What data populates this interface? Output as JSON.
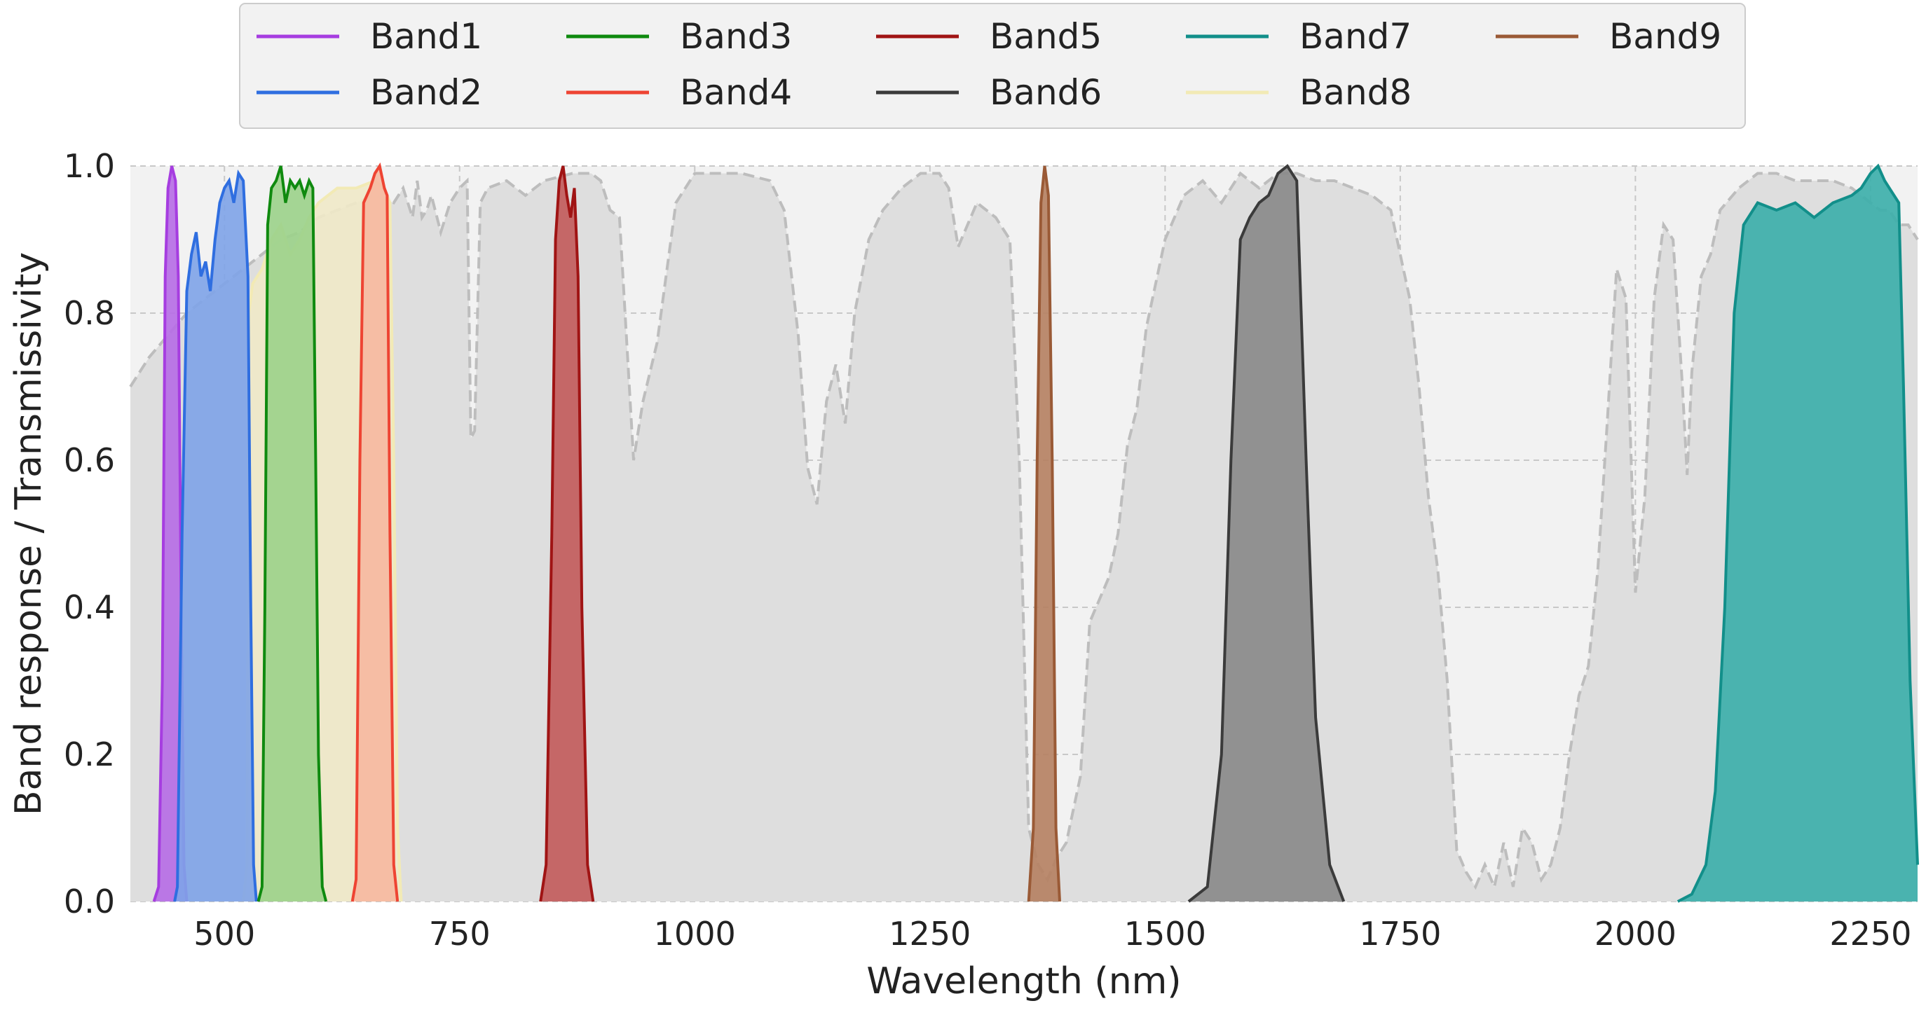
{
  "chart_data": {
    "type": "area",
    "xlabel": "Wavelength (nm)",
    "ylabel": "Band response / Transmissivity",
    "xlim": [
      400,
      2300
    ],
    "ylim": [
      0,
      1.0
    ],
    "xticks": [
      500,
      750,
      1000,
      1250,
      1500,
      1750,
      2000,
      2250
    ],
    "yticks": [
      0.0,
      0.2,
      0.4,
      0.6,
      0.8,
      1.0
    ],
    "grid": true,
    "legend_position": "top-center",
    "transmissivity": {
      "color": "#bdbdbd",
      "points": [
        [
          400,
          0.7
        ],
        [
          420,
          0.74
        ],
        [
          440,
          0.77
        ],
        [
          460,
          0.8
        ],
        [
          480,
          0.82
        ],
        [
          500,
          0.84
        ],
        [
          520,
          0.86
        ],
        [
          540,
          0.88
        ],
        [
          560,
          0.9
        ],
        [
          580,
          0.91
        ],
        [
          600,
          0.93
        ],
        [
          620,
          0.94
        ],
        [
          640,
          0.95
        ],
        [
          660,
          0.96
        ],
        [
          680,
          0.95
        ],
        [
          690,
          0.97
        ],
        [
          700,
          0.93
        ],
        [
          705,
          0.98
        ],
        [
          710,
          0.93
        ],
        [
          715,
          0.94
        ],
        [
          720,
          0.96
        ],
        [
          730,
          0.91
        ],
        [
          740,
          0.95
        ],
        [
          750,
          0.97
        ],
        [
          758,
          0.98
        ],
        [
          762,
          0.63
        ],
        [
          766,
          0.64
        ],
        [
          772,
          0.95
        ],
        [
          780,
          0.97
        ],
        [
          800,
          0.98
        ],
        [
          820,
          0.96
        ],
        [
          840,
          0.98
        ],
        [
          870,
          0.99
        ],
        [
          890,
          0.99
        ],
        [
          900,
          0.98
        ],
        [
          910,
          0.94
        ],
        [
          920,
          0.93
        ],
        [
          935,
          0.6
        ],
        [
          945,
          0.68
        ],
        [
          960,
          0.76
        ],
        [
          980,
          0.95
        ],
        [
          1000,
          0.99
        ],
        [
          1050,
          0.99
        ],
        [
          1080,
          0.98
        ],
        [
          1095,
          0.94
        ],
        [
          1110,
          0.77
        ],
        [
          1120,
          0.59
        ],
        [
          1130,
          0.54
        ],
        [
          1140,
          0.68
        ],
        [
          1150,
          0.73
        ],
        [
          1160,
          0.65
        ],
        [
          1170,
          0.8
        ],
        [
          1185,
          0.9
        ],
        [
          1200,
          0.94
        ],
        [
          1220,
          0.97
        ],
        [
          1240,
          0.99
        ],
        [
          1260,
          0.99
        ],
        [
          1270,
          0.97
        ],
        [
          1280,
          0.89
        ],
        [
          1300,
          0.95
        ],
        [
          1320,
          0.93
        ],
        [
          1335,
          0.9
        ],
        [
          1345,
          0.6
        ],
        [
          1355,
          0.1
        ],
        [
          1365,
          0.05
        ],
        [
          1375,
          0.03
        ],
        [
          1385,
          0.06
        ],
        [
          1395,
          0.08
        ],
        [
          1410,
          0.17
        ],
        [
          1420,
          0.38
        ],
        [
          1440,
          0.44
        ],
        [
          1450,
          0.5
        ],
        [
          1460,
          0.62
        ],
        [
          1470,
          0.67
        ],
        [
          1480,
          0.78
        ],
        [
          1500,
          0.9
        ],
        [
          1520,
          0.96
        ],
        [
          1540,
          0.98
        ],
        [
          1560,
          0.95
        ],
        [
          1580,
          0.99
        ],
        [
          1600,
          0.97
        ],
        [
          1620,
          0.99
        ],
        [
          1640,
          0.99
        ],
        [
          1660,
          0.98
        ],
        [
          1680,
          0.98
        ],
        [
          1700,
          0.97
        ],
        [
          1720,
          0.96
        ],
        [
          1740,
          0.94
        ],
        [
          1750,
          0.88
        ],
        [
          1760,
          0.82
        ],
        [
          1770,
          0.7
        ],
        [
          1780,
          0.55
        ],
        [
          1790,
          0.45
        ],
        [
          1800,
          0.3
        ],
        [
          1810,
          0.07
        ],
        [
          1820,
          0.04
        ],
        [
          1830,
          0.02
        ],
        [
          1840,
          0.05
        ],
        [
          1850,
          0.02
        ],
        [
          1860,
          0.08
        ],
        [
          1870,
          0.02
        ],
        [
          1880,
          0.1
        ],
        [
          1890,
          0.08
        ],
        [
          1900,
          0.03
        ],
        [
          1910,
          0.05
        ],
        [
          1920,
          0.1
        ],
        [
          1930,
          0.2
        ],
        [
          1940,
          0.28
        ],
        [
          1950,
          0.32
        ],
        [
          1960,
          0.45
        ],
        [
          1970,
          0.65
        ],
        [
          1980,
          0.86
        ],
        [
          1990,
          0.82
        ],
        [
          2000,
          0.42
        ],
        [
          2010,
          0.55
        ],
        [
          2020,
          0.82
        ],
        [
          2030,
          0.92
        ],
        [
          2040,
          0.9
        ],
        [
          2050,
          0.7
        ],
        [
          2055,
          0.58
        ],
        [
          2060,
          0.72
        ],
        [
          2070,
          0.85
        ],
        [
          2080,
          0.88
        ],
        [
          2090,
          0.94
        ],
        [
          2110,
          0.97
        ],
        [
          2130,
          0.99
        ],
        [
          2150,
          0.99
        ],
        [
          2170,
          0.98
        ],
        [
          2190,
          0.98
        ],
        [
          2210,
          0.98
        ],
        [
          2230,
          0.97
        ],
        [
          2240,
          0.96
        ],
        [
          2250,
          0.95
        ],
        [
          2260,
          0.94
        ],
        [
          2270,
          0.94
        ],
        [
          2280,
          0.92
        ],
        [
          2290,
          0.92
        ],
        [
          2300,
          0.9
        ]
      ]
    },
    "series": [
      {
        "name": "Band1",
        "color": "#a63de0",
        "fill": "#b66be6",
        "points": [
          [
            425,
            0.0
          ],
          [
            430,
            0.02
          ],
          [
            434,
            0.3
          ],
          [
            437,
            0.85
          ],
          [
            440,
            0.97
          ],
          [
            444,
            1.0
          ],
          [
            448,
            0.98
          ],
          [
            451,
            0.85
          ],
          [
            454,
            0.4
          ],
          [
            457,
            0.05
          ],
          [
            460,
            0.0
          ]
        ]
      },
      {
        "name": "Band2",
        "color": "#2f6ee0",
        "fill": "#7ea3e8",
        "points": [
          [
            447,
            0.0
          ],
          [
            450,
            0.02
          ],
          [
            455,
            0.5
          ],
          [
            460,
            0.83
          ],
          [
            465,
            0.88
          ],
          [
            470,
            0.91
          ],
          [
            475,
            0.85
          ],
          [
            480,
            0.87
          ],
          [
            485,
            0.83
          ],
          [
            490,
            0.9
          ],
          [
            495,
            0.95
          ],
          [
            500,
            0.97
          ],
          [
            505,
            0.98
          ],
          [
            510,
            0.95
          ],
          [
            515,
            0.99
          ],
          [
            520,
            0.98
          ],
          [
            525,
            0.85
          ],
          [
            528,
            0.4
          ],
          [
            531,
            0.05
          ],
          [
            534,
            0.0
          ]
        ]
      },
      {
        "name": "Band3",
        "color": "#0f8a0f",
        "fill": "#9bd28a",
        "points": [
          [
            536,
            0.0
          ],
          [
            540,
            0.02
          ],
          [
            543,
            0.4
          ],
          [
            546,
            0.92
          ],
          [
            550,
            0.97
          ],
          [
            555,
            0.98
          ],
          [
            560,
            1.0
          ],
          [
            565,
            0.95
          ],
          [
            570,
            0.98
          ],
          [
            575,
            0.97
          ],
          [
            580,
            0.98
          ],
          [
            585,
            0.96
          ],
          [
            590,
            0.98
          ],
          [
            594,
            0.97
          ],
          [
            597,
            0.6
          ],
          [
            600,
            0.2
          ],
          [
            604,
            0.02
          ],
          [
            608,
            0.0
          ]
        ]
      },
      {
        "name": "Band4",
        "color": "#ee4433",
        "fill": "#f6b8a0",
        "points": [
          [
            636,
            0.0
          ],
          [
            640,
            0.03
          ],
          [
            644,
            0.6
          ],
          [
            648,
            0.95
          ],
          [
            655,
            0.97
          ],
          [
            660,
            0.99
          ],
          [
            665,
            1.0
          ],
          [
            670,
            0.97
          ],
          [
            673,
            0.96
          ],
          [
            676,
            0.5
          ],
          [
            680,
            0.05
          ],
          [
            684,
            0.0
          ]
        ]
      },
      {
        "name": "Band5",
        "color": "#a01414",
        "fill": "#c25a5a",
        "points": [
          [
            836,
            0.0
          ],
          [
            842,
            0.05
          ],
          [
            848,
            0.5
          ],
          [
            852,
            0.9
          ],
          [
            856,
            0.98
          ],
          [
            860,
            1.0
          ],
          [
            864,
            0.96
          ],
          [
            868,
            0.93
          ],
          [
            872,
            0.97
          ],
          [
            876,
            0.85
          ],
          [
            880,
            0.4
          ],
          [
            886,
            0.05
          ],
          [
            892,
            0.0
          ]
        ]
      },
      {
        "name": "Band6",
        "color": "#3b3b3b",
        "fill": "#888888",
        "points": [
          [
            1525,
            0.0
          ],
          [
            1545,
            0.02
          ],
          [
            1560,
            0.2
          ],
          [
            1570,
            0.6
          ],
          [
            1580,
            0.9
          ],
          [
            1590,
            0.93
          ],
          [
            1600,
            0.95
          ],
          [
            1610,
            0.96
          ],
          [
            1620,
            0.99
          ],
          [
            1630,
            1.0
          ],
          [
            1640,
            0.98
          ],
          [
            1650,
            0.6
          ],
          [
            1660,
            0.25
          ],
          [
            1675,
            0.05
          ],
          [
            1690,
            0.0
          ]
        ]
      },
      {
        "name": "Band7",
        "color": "#128f8a",
        "fill": "#3aaeaa",
        "points": [
          [
            2045,
            0.0
          ],
          [
            2060,
            0.01
          ],
          [
            2075,
            0.05
          ],
          [
            2085,
            0.15
          ],
          [
            2095,
            0.4
          ],
          [
            2105,
            0.8
          ],
          [
            2115,
            0.92
          ],
          [
            2130,
            0.95
          ],
          [
            2150,
            0.94
          ],
          [
            2170,
            0.95
          ],
          [
            2190,
            0.93
          ],
          [
            2210,
            0.95
          ],
          [
            2230,
            0.96
          ],
          [
            2240,
            0.97
          ],
          [
            2250,
            0.99
          ],
          [
            2258,
            1.0
          ],
          [
            2265,
            0.98
          ],
          [
            2270,
            0.97
          ],
          [
            2280,
            0.95
          ],
          [
            2285,
            0.7
          ],
          [
            2292,
            0.3
          ],
          [
            2300,
            0.05
          ]
        ]
      },
      {
        "name": "Band8",
        "color": "#f2eab5",
        "fill": "#efe9c8",
        "points": [
          [
            520,
            0.0
          ],
          [
            524,
            0.05
          ],
          [
            526,
            0.8
          ],
          [
            530,
            0.84
          ],
          [
            540,
            0.86
          ],
          [
            550,
            0.9
          ],
          [
            560,
            0.92
          ],
          [
            570,
            0.88
          ],
          [
            580,
            0.9
          ],
          [
            590,
            0.93
          ],
          [
            600,
            0.95
          ],
          [
            620,
            0.97
          ],
          [
            640,
            0.97
          ],
          [
            660,
            0.98
          ],
          [
            670,
            0.97
          ],
          [
            676,
            0.95
          ],
          [
            680,
            0.6
          ],
          [
            684,
            0.1
          ],
          [
            688,
            0.0
          ]
        ]
      },
      {
        "name": "Band9",
        "color": "#9a5a36",
        "fill": "#b57f60",
        "points": [
          [
            1355,
            0.0
          ],
          [
            1360,
            0.1
          ],
          [
            1364,
            0.6
          ],
          [
            1368,
            0.95
          ],
          [
            1372,
            1.0
          ],
          [
            1376,
            0.96
          ],
          [
            1380,
            0.6
          ],
          [
            1384,
            0.1
          ],
          [
            1388,
            0.0
          ]
        ]
      }
    ],
    "legend_order": [
      "Band1",
      "Band2",
      "Band3",
      "Band4",
      "Band5",
      "Band6",
      "Band7",
      "Band8",
      "Band9"
    ]
  }
}
